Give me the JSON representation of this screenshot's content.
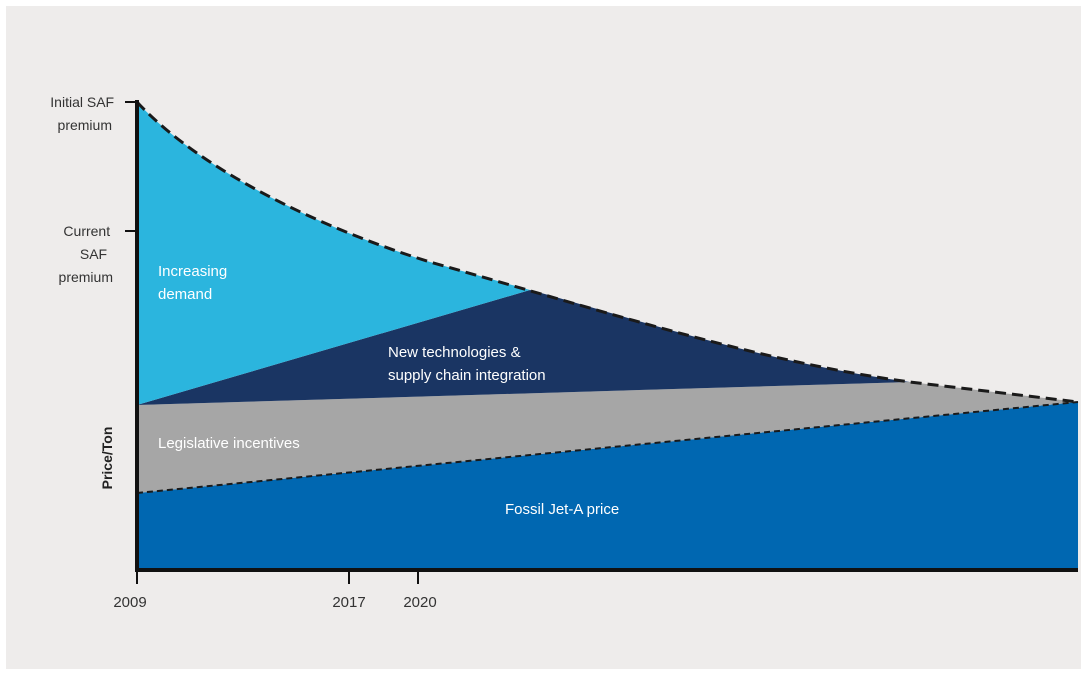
{
  "chart_data": {
    "type": "area",
    "ylabel": "Price/Ton",
    "x_ticks": [
      "2009",
      "2017",
      "2020"
    ],
    "y_ticks": [
      {
        "lines": [
          "Initial SAF",
          "premium"
        ]
      },
      {
        "lines": [
          "Current",
          "SAF",
          "premium"
        ]
      }
    ],
    "regions": [
      {
        "name": "Increasing demand",
        "label_lines": [
          "Increasing",
          "demand"
        ],
        "color": "#2bb5de"
      },
      {
        "name": "New technologies & supply chain integration",
        "label_lines": [
          "New technologies &",
          "supply chain integration"
        ],
        "color": "#1a3563"
      },
      {
        "name": "Legislative incentives",
        "label_lines": [
          "Legislative incentives"
        ],
        "color": "#a6a6a6"
      },
      {
        "name": "Fossil Jet-A price",
        "label_lines": [
          "Fossil Jet-A price"
        ],
        "color": "#0067b1"
      }
    ],
    "saf_price_curve": "decreasing (dashed)",
    "fossil_price_line": "increasing (dashed)",
    "axis_color": "#111111",
    "grid": false,
    "legend": "none"
  }
}
